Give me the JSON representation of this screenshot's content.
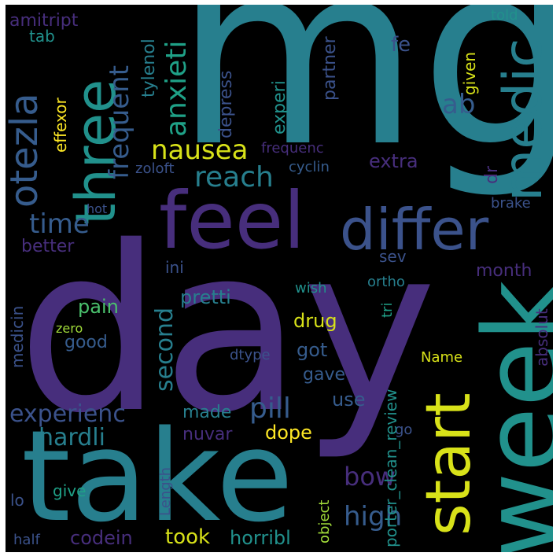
{
  "wordcloud": {
    "background": "#000000",
    "palette": {
      "purple": "#46337e",
      "indigo": "#472e7c",
      "blue": "#365c8d",
      "slate": "#3b528b",
      "teal": "#277f8e",
      "teal2": "#21918c",
      "green": "#1fa187",
      "lightgreen": "#4ac16d",
      "yellowgreen": "#a0da39",
      "yellow": "#d8e219",
      "gold": "#fde725"
    },
    "words": [
      {
        "text": "mg",
        "color": "teal"
      },
      {
        "text": "day",
        "color": "indigo"
      },
      {
        "text": "take",
        "color": "teal"
      },
      {
        "text": "week",
        "color": "teal2"
      },
      {
        "text": "feel",
        "color": "indigo"
      },
      {
        "text": "differ",
        "color": "slate"
      },
      {
        "text": "three",
        "color": "teal2"
      },
      {
        "text": "medic",
        "color": "teal"
      },
      {
        "text": "start",
        "color": "yellow"
      },
      {
        "text": "otezla",
        "color": "blue"
      },
      {
        "text": "nausea",
        "color": "yellow"
      },
      {
        "text": "frequent",
        "color": "blue"
      },
      {
        "text": "anxieti",
        "color": "green"
      },
      {
        "text": "reach",
        "color": "teal"
      },
      {
        "text": "time",
        "color": "blue"
      },
      {
        "text": "ab",
        "color": "blue"
      },
      {
        "text": "amitript",
        "color": "indigo"
      },
      {
        "text": "tab",
        "color": "teal2"
      },
      {
        "text": "effexor",
        "color": "gold"
      },
      {
        "text": "tylenol",
        "color": "teal"
      },
      {
        "text": "depress",
        "color": "slate"
      },
      {
        "text": "experi",
        "color": "teal2"
      },
      {
        "text": "partner",
        "color": "slate"
      },
      {
        "text": "given",
        "color": "yellow"
      },
      {
        "text": "told",
        "color": "teal2"
      },
      {
        "text": "fe",
        "color": "slate"
      },
      {
        "text": "extra",
        "color": "indigo"
      },
      {
        "text": "frequenc",
        "color": "indigo"
      },
      {
        "text": "zoloft",
        "color": "slate"
      },
      {
        "text": "cyclin",
        "color": "blue"
      },
      {
        "text": "dr",
        "color": "indigo"
      },
      {
        "text": "hot",
        "color": "slate"
      },
      {
        "text": "brake",
        "color": "slate"
      },
      {
        "text": "better",
        "color": "indigo"
      },
      {
        "text": "sev",
        "color": "slate"
      },
      {
        "text": "ini",
        "color": "slate"
      },
      {
        "text": "month",
        "color": "indigo"
      },
      {
        "text": "medicin",
        "color": "slate"
      },
      {
        "text": "pain",
        "color": "lightgreen"
      },
      {
        "text": "second",
        "color": "teal"
      },
      {
        "text": "pretti",
        "color": "teal"
      },
      {
        "text": "wish",
        "color": "teal2"
      },
      {
        "text": "ortho",
        "color": "teal"
      },
      {
        "text": "tri",
        "color": "green"
      },
      {
        "text": "absolut",
        "color": "indigo"
      },
      {
        "text": "zero",
        "color": "yellowgreen"
      },
      {
        "text": "drug",
        "color": "yellow"
      },
      {
        "text": "good",
        "color": "blue"
      },
      {
        "text": "got",
        "color": "blue"
      },
      {
        "text": "dtype",
        "color": "slate"
      },
      {
        "text": "Name",
        "color": "yellow"
      },
      {
        "text": "gave",
        "color": "blue"
      },
      {
        "text": "experienc",
        "color": "slate"
      },
      {
        "text": "made",
        "color": "teal"
      },
      {
        "text": "pill",
        "color": "blue"
      },
      {
        "text": "use",
        "color": "blue"
      },
      {
        "text": "hardli",
        "color": "teal"
      },
      {
        "text": "nuvar",
        "color": "indigo"
      },
      {
        "text": "dope",
        "color": "gold"
      },
      {
        "text": "go",
        "color": "slate"
      },
      {
        "text": "bow",
        "color": "indigo"
      },
      {
        "text": "high",
        "color": "blue"
      },
      {
        "text": "give",
        "color": "green"
      },
      {
        "text": "Length",
        "color": "slate"
      },
      {
        "text": "lo",
        "color": "slate"
      },
      {
        "text": "object",
        "color": "yellowgreen"
      },
      {
        "text": "porter_clean_review",
        "color": "teal2"
      },
      {
        "text": "half",
        "color": "slate"
      },
      {
        "text": "codein",
        "color": "indigo"
      },
      {
        "text": "took",
        "color": "yellow"
      },
      {
        "text": "horribl",
        "color": "teal2"
      }
    ]
  }
}
